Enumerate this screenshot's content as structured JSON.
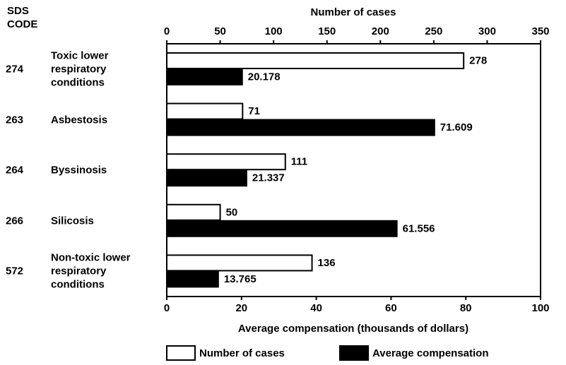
{
  "chart_data": {
    "type": "bar",
    "orientation": "horizontal",
    "code_header": "SDS CODE",
    "codes": [
      "274",
      "263",
      "264",
      "266",
      "572"
    ],
    "categories": [
      "Toxic lower respiratory conditions",
      "Asbestosis",
      "Byssinosis",
      "Silicosis",
      "Non-toxic lower respiratory conditions"
    ],
    "series": [
      {
        "name": "Number of cases",
        "color": "#ffffff",
        "axis": "x2",
        "values": [
          278,
          71,
          111,
          50,
          136
        ]
      },
      {
        "name": "Average compensation",
        "color": "#000000",
        "values": [
          20.178,
          71.609,
          21.337,
          61.556,
          13.765
        ]
      }
    ],
    "x2label": "Number of cases",
    "x2lim": [
      0,
      350
    ],
    "x2ticks": [
      0,
      50,
      100,
      150,
      200,
      250,
      300,
      350
    ],
    "xlabel": "Average compensation (thousands of dollars)",
    "xlim": [
      0,
      100
    ],
    "xticks": [
      0,
      20,
      40,
      60,
      80,
      100
    ],
    "legend": "bottom"
  }
}
